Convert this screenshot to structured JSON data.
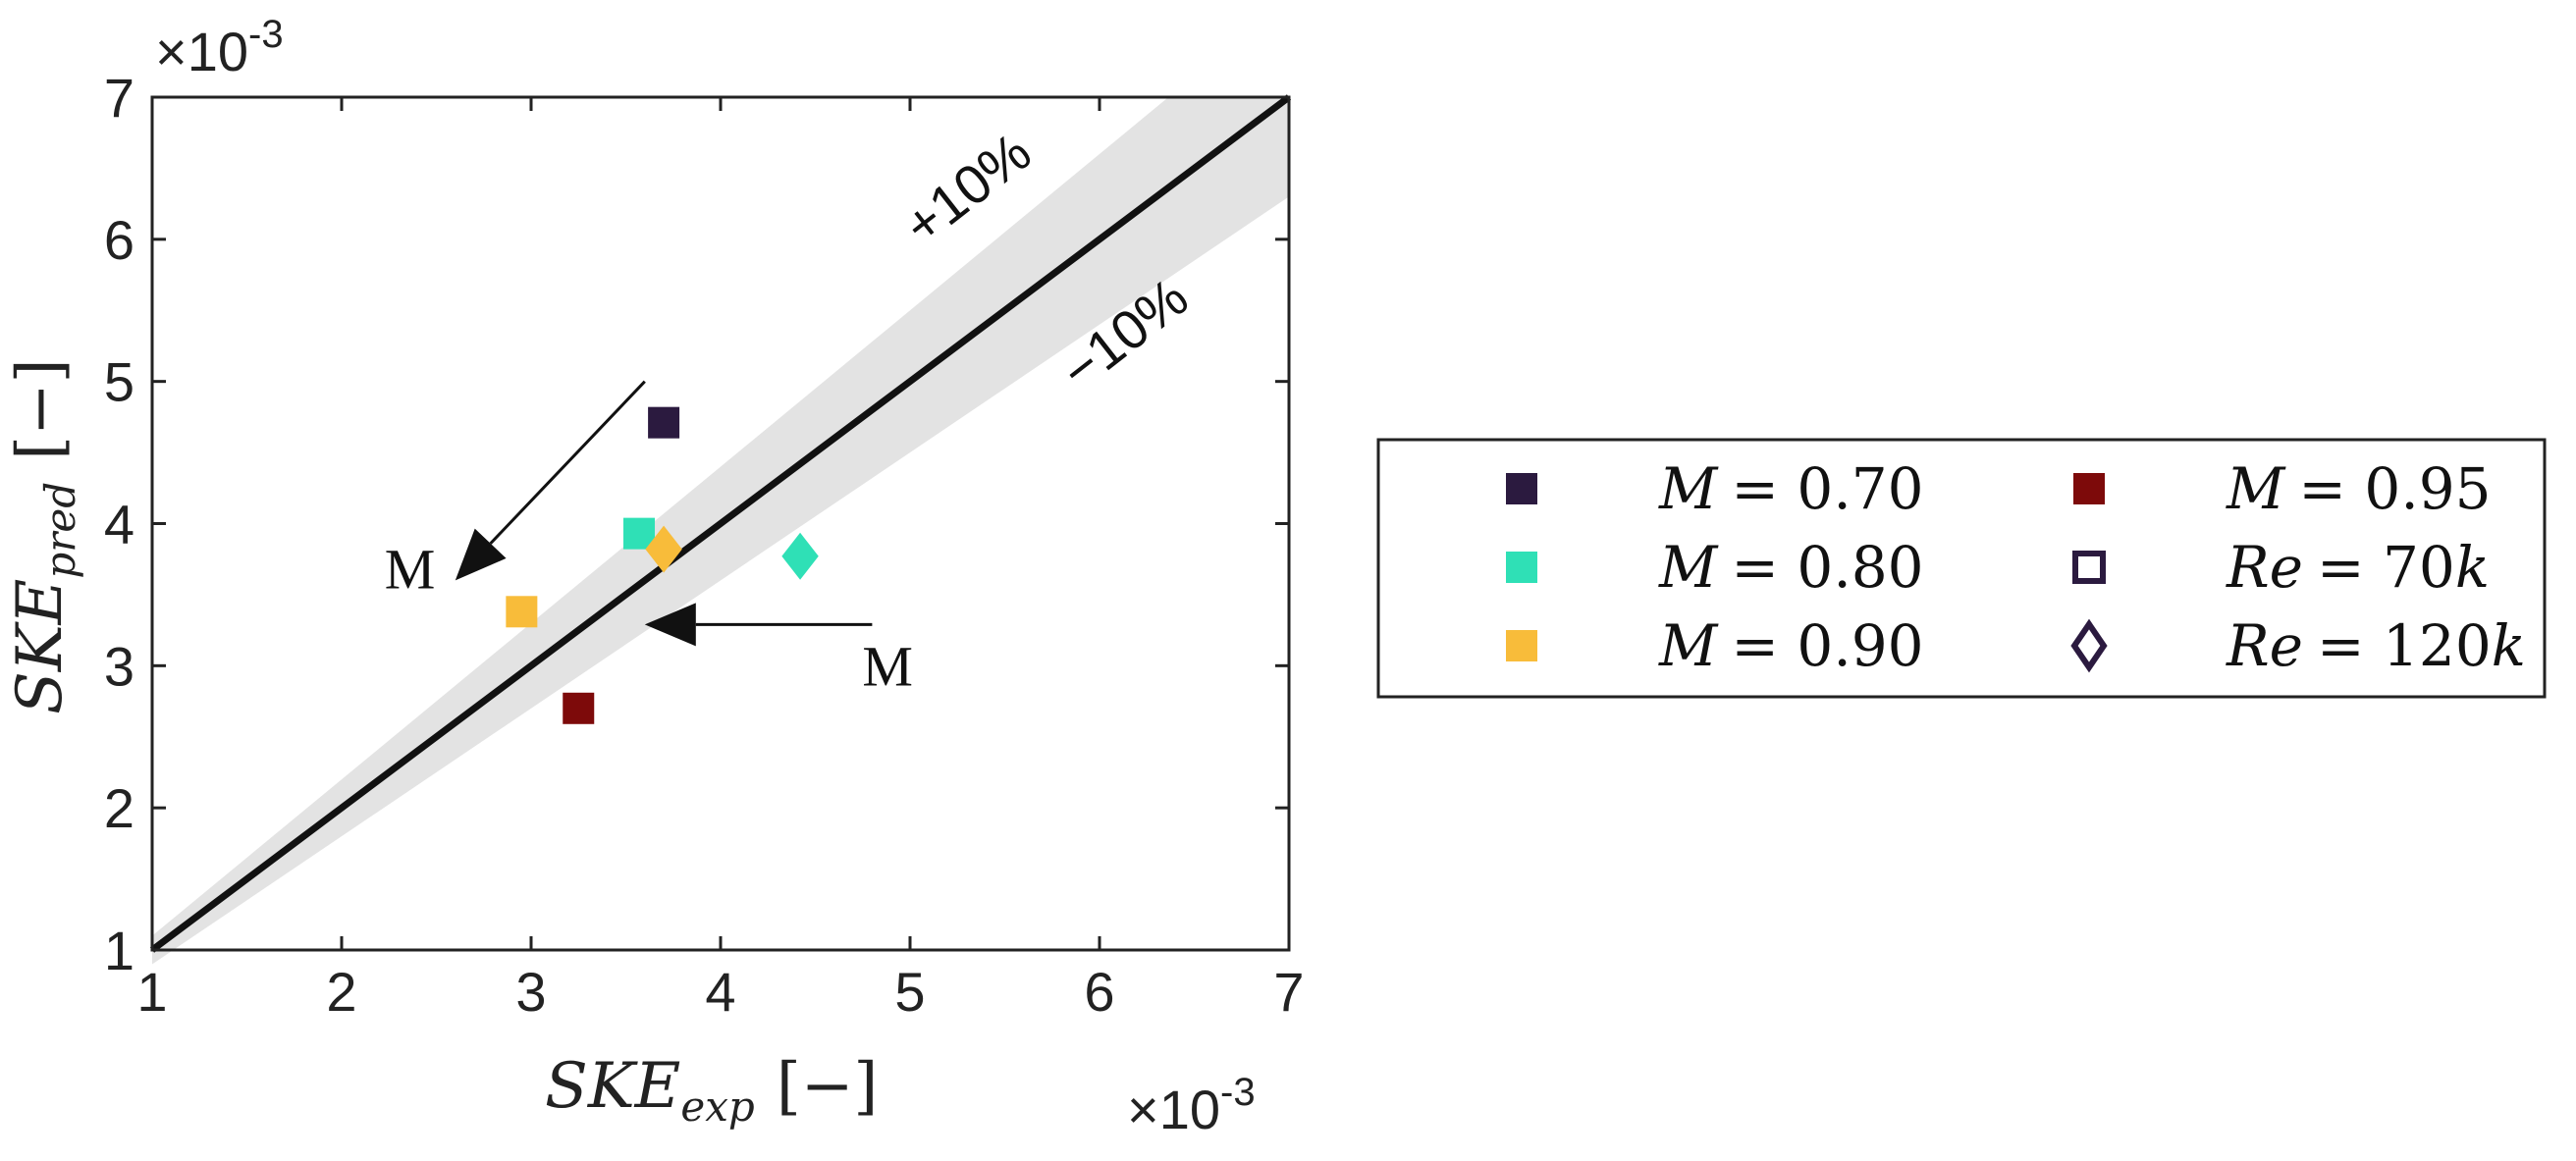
{
  "chart_data": {
    "type": "scatter",
    "title": "",
    "xlabel": {
      "base": "SKE",
      "sub": "exp",
      "unit": "[−]"
    },
    "ylabel": {
      "base": "SKE",
      "sub": "pred",
      "unit": "[−]"
    },
    "x_exponent": "×10",
    "y_exponent": "×10",
    "exponent_power": "-3",
    "xlim": [
      1,
      7
    ],
    "ylim": [
      1,
      7
    ],
    "xticks": [
      "1",
      "2",
      "3",
      "4",
      "5",
      "6",
      "7"
    ],
    "yticks": [
      "1",
      "2",
      "3",
      "4",
      "5",
      "6",
      "7"
    ],
    "parity_line": {
      "slope": 1
    },
    "band": {
      "upper_pct": 10,
      "lower_pct": -10,
      "upper_label": "+10%",
      "lower_label": "−10%",
      "color": "#e3e3e3"
    },
    "series": [
      {
        "name": "M = 0.70",
        "color": "#2b1a3f",
        "points": [
          {
            "x": 3.7,
            "y": 4.71,
            "marker": "square"
          }
        ]
      },
      {
        "name": "M = 0.80",
        "color": "#2fe0b6",
        "points": [
          {
            "x": 3.57,
            "y": 3.93,
            "marker": "square"
          },
          {
            "x": 4.42,
            "y": 3.77,
            "marker": "diamond"
          }
        ]
      },
      {
        "name": "M = 0.90",
        "color": "#f8bc3a",
        "points": [
          {
            "x": 2.95,
            "y": 3.38,
            "marker": "square"
          },
          {
            "x": 3.7,
            "y": 3.82,
            "marker": "diamond"
          }
        ]
      },
      {
        "name": "M = 0.95",
        "color": "#7d0a0a",
        "points": [
          {
            "x": 3.25,
            "y": 2.7,
            "marker": "square"
          }
        ]
      }
    ],
    "annotations": [
      {
        "text": "M",
        "from": [
          3.6,
          5.0
        ],
        "to": [
          2.6,
          3.6
        ]
      },
      {
        "text": "M",
        "from": [
          4.8,
          3.29
        ],
        "to": [
          3.6,
          3.29
        ]
      }
    ],
    "legend": {
      "position": "right",
      "entries": [
        {
          "label_var": "M",
          "label_val": "= 0.70",
          "marker": "square-filled",
          "color": "#2b1a3f"
        },
        {
          "label_var": "M",
          "label_val": "= 0.80",
          "marker": "square-filled",
          "color": "#2fe0b6"
        },
        {
          "label_var": "M",
          "label_val": "= 0.90",
          "marker": "square-filled",
          "color": "#f8bc3a"
        },
        {
          "label_var": "M",
          "label_val": "= 0.95",
          "marker": "square-filled",
          "color": "#7d0a0a"
        },
        {
          "label_var": "Re",
          "label_val": "= 70",
          "label_suffix": "k",
          "marker": "square-open",
          "color": "#2b1a3f"
        },
        {
          "label_var": "Re",
          "label_val": "= 120",
          "label_suffix": "k",
          "marker": "diamond-open",
          "color": "#2b1a3f"
        }
      ]
    },
    "grid": false
  }
}
